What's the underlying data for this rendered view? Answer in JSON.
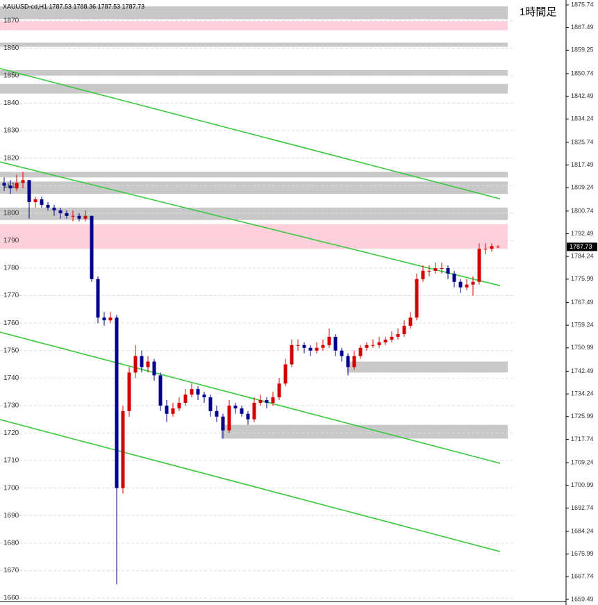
{
  "chart_data": {
    "type": "candlestick",
    "title": "XAUUSD-cd,H1  1787.53 1788.36 1787.53 1787.73",
    "annotation": "1時間足",
    "ylim": [
      1659.49,
      1875.74
    ],
    "yticks": [
      1875.74,
      1867.49,
      1859.25,
      1850.74,
      1842.49,
      1834.24,
      1825.74,
      1817.49,
      1809.24,
      1800.74,
      1792.49,
      1784.24,
      1775.99,
      1767.49,
      1759.24,
      1750.99,
      1742.49,
      1734.24,
      1725.99,
      1717.74,
      1709.24,
      1700.99,
      1692.74,
      1684.24,
      1675.99,
      1667.74,
      1659.49
    ],
    "left_ticks": [
      1870,
      1860,
      1850,
      1840,
      1830,
      1820,
      1810,
      1800,
      1790,
      1780,
      1770,
      1760,
      1750,
      1740,
      1730,
      1720,
      1710,
      1700,
      1690,
      1680,
      1670,
      1660
    ],
    "grid": true,
    "last_price": 1787.73,
    "up_color": "#d40000",
    "down_color": "#00008b",
    "trend_color": "#3cc83c",
    "zones": [
      {
        "low": 1870.5,
        "high": 1875.2,
        "color": "#c8c8c8"
      },
      {
        "low": 1866.5,
        "high": 1869.8,
        "color": "#ffd0dc"
      },
      {
        "low": 1860.5,
        "high": 1862.0,
        "color": "#c8c8c8"
      },
      {
        "low": 1850.0,
        "high": 1852.0,
        "color": "#c8c8c8"
      },
      {
        "low": 1843.5,
        "high": 1847.0,
        "color": "#c8c8c8"
      },
      {
        "low": 1813.0,
        "high": 1815.0,
        "color": "#c8c8c8"
      },
      {
        "low": 1807.0,
        "high": 1811.5,
        "color": "#c8c8c8"
      },
      {
        "low": 1797.5,
        "high": 1802.0,
        "color": "#c8c8c8"
      },
      {
        "low": 1787.0,
        "high": 1796.0,
        "color": "#ffd0dc"
      },
      {
        "low": 1742.0,
        "high": 1746.0,
        "color": "#c8c8c8"
      },
      {
        "low": 1718.0,
        "high": 1723.0,
        "color": "#c8c8c8"
      }
    ],
    "trendlines": [
      {
        "start": 1852.6,
        "end": 1805.2
      },
      {
        "start": 1818.6,
        "end": 1773.6
      },
      {
        "start": 1756.7,
        "end": 1709.0
      },
      {
        "start": 1724.9,
        "end": 1676.9
      }
    ],
    "candles": [
      [
        1811,
        1813,
        1808,
        1810
      ],
      [
        1810,
        1812,
        1807,
        1809
      ],
      [
        1809,
        1814,
        1808,
        1811
      ],
      [
        1811,
        1815,
        1809,
        1812
      ],
      [
        1812,
        1812,
        1798,
        1804
      ],
      [
        1804,
        1806,
        1802,
        1805
      ],
      [
        1805,
        1806,
        1802,
        1803
      ],
      [
        1803,
        1804,
        1801,
        1802
      ],
      [
        1802,
        1803,
        1799,
        1801
      ],
      [
        1801,
        1802,
        1798,
        1800
      ],
      [
        1800,
        1801,
        1798,
        1799
      ],
      [
        1799,
        1801,
        1797,
        1799
      ],
      [
        1799,
        1800,
        1797,
        1798
      ],
      [
        1798,
        1801,
        1797,
        1799
      ],
      [
        1799,
        1799,
        1775,
        1776
      ],
      [
        1776,
        1777,
        1760,
        1762
      ],
      [
        1762,
        1764,
        1759,
        1761
      ],
      [
        1761,
        1764,
        1760,
        1762
      ],
      [
        1762,
        1763,
        1665,
        1700
      ],
      [
        1700,
        1730,
        1698,
        1728
      ],
      [
        1728,
        1744,
        1726,
        1742
      ],
      [
        1742,
        1752,
        1740,
        1748
      ],
      [
        1748,
        1750,
        1742,
        1744
      ],
      [
        1744,
        1748,
        1742,
        1746
      ],
      [
        1746,
        1747,
        1739,
        1741
      ],
      [
        1741,
        1742,
        1728,
        1730
      ],
      [
        1730,
        1732,
        1724,
        1727
      ],
      [
        1727,
        1731,
        1726,
        1729
      ],
      [
        1729,
        1733,
        1728,
        1731
      ],
      [
        1731,
        1736,
        1730,
        1734
      ],
      [
        1734,
        1738,
        1733,
        1736
      ],
      [
        1736,
        1737,
        1732,
        1734
      ],
      [
        1734,
        1735,
        1731,
        1733
      ],
      [
        1733,
        1734,
        1726,
        1728
      ],
      [
        1728,
        1730,
        1724,
        1726
      ],
      [
        1726,
        1727,
        1718,
        1721
      ],
      [
        1721,
        1732,
        1720,
        1730
      ],
      [
        1730,
        1731,
        1727,
        1729
      ],
      [
        1729,
        1730,
        1726,
        1727
      ],
      [
        1727,
        1728,
        1723,
        1725
      ],
      [
        1725,
        1733,
        1724,
        1731
      ],
      [
        1731,
        1734,
        1730,
        1732
      ],
      [
        1732,
        1733,
        1729,
        1731
      ],
      [
        1731,
        1735,
        1730,
        1733
      ],
      [
        1733,
        1740,
        1732,
        1738
      ],
      [
        1738,
        1747,
        1737,
        1745
      ],
      [
        1745,
        1754,
        1744,
        1752
      ],
      [
        1752,
        1754,
        1750,
        1752
      ],
      [
        1752,
        1753,
        1749,
        1751
      ],
      [
        1751,
        1752,
        1748,
        1750
      ],
      [
        1750,
        1753,
        1749,
        1751
      ],
      [
        1751,
        1754,
        1750,
        1752
      ],
      [
        1752,
        1758,
        1751,
        1755
      ],
      [
        1755,
        1756,
        1748,
        1750
      ],
      [
        1750,
        1751,
        1746,
        1748
      ],
      [
        1748,
        1749,
        1741,
        1744
      ],
      [
        1744,
        1750,
        1743,
        1748
      ],
      [
        1748,
        1752,
        1747,
        1751
      ],
      [
        1751,
        1753,
        1750,
        1752
      ],
      [
        1752,
        1754,
        1751,
        1752
      ],
      [
        1752,
        1755,
        1751,
        1753
      ],
      [
        1753,
        1755,
        1752,
        1754
      ],
      [
        1754,
        1757,
        1753,
        1755
      ],
      [
        1755,
        1758,
        1754,
        1756
      ],
      [
        1756,
        1761,
        1755,
        1759
      ],
      [
        1759,
        1764,
        1758,
        1762
      ],
      [
        1762,
        1778,
        1761,
        1776
      ],
      [
        1776,
        1781,
        1775,
        1779
      ],
      [
        1779,
        1781,
        1777,
        1779
      ],
      [
        1779,
        1782,
        1778,
        1780
      ],
      [
        1780,
        1782,
        1778,
        1780
      ],
      [
        1780,
        1781,
        1776,
        1778
      ],
      [
        1778,
        1779,
        1773,
        1775
      ],
      [
        1775,
        1776,
        1771,
        1773
      ],
      [
        1773,
        1776,
        1772,
        1774
      ],
      [
        1774,
        1777,
        1770,
        1775
      ],
      [
        1775,
        1789,
        1774,
        1787
      ],
      [
        1787,
        1789,
        1785,
        1787
      ],
      [
        1787,
        1789,
        1786,
        1788
      ],
      [
        1787.53,
        1788.36,
        1787.53,
        1787.73
      ]
    ]
  }
}
